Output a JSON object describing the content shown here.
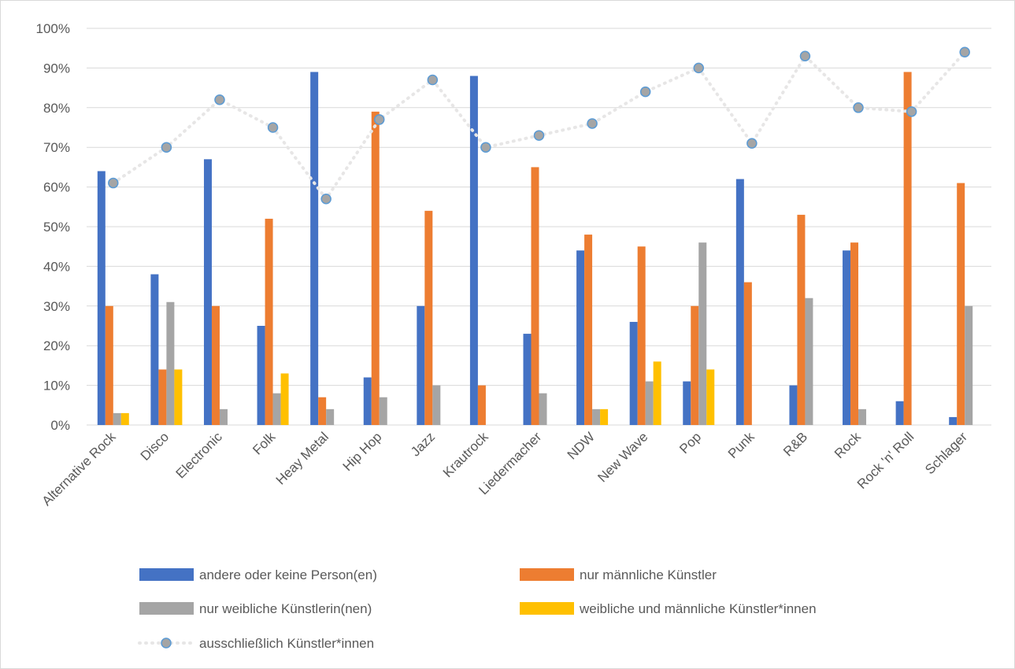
{
  "chart_data": {
    "type": "bar",
    "title": "",
    "xlabel": "",
    "ylabel": "",
    "ylim": [
      0,
      100
    ],
    "y_ticks": [
      "0%",
      "10%",
      "20%",
      "30%",
      "40%",
      "50%",
      "60%",
      "70%",
      "80%",
      "90%",
      "100%"
    ],
    "grid": true,
    "legend_position": "bottom",
    "categories": [
      "Alternative Rock",
      "Disco",
      "Electronic",
      "Folk",
      "Heay Metal",
      "Hip Hop",
      "Jazz",
      "Krautrock",
      "Liedermacher",
      "NDW",
      "New Wave",
      "Pop",
      "Punk",
      "R&B",
      "Rock",
      "Rock 'n' Roll",
      "Schlager"
    ],
    "series": [
      {
        "name": "andere oder keine Person(en)",
        "type": "bar",
        "color": "#4472C4",
        "values": [
          64,
          38,
          67,
          25,
          89,
          12,
          30,
          88,
          23,
          44,
          26,
          11,
          62,
          10,
          44,
          6,
          2
        ]
      },
      {
        "name": "nur männliche Künstler",
        "type": "bar",
        "color": "#ED7D31",
        "values": [
          30,
          14,
          30,
          52,
          7,
          79,
          54,
          10,
          65,
          48,
          45,
          30,
          36,
          53,
          46,
          89,
          61
        ]
      },
      {
        "name": "nur weibliche Künstlerin(nen)",
        "type": "bar",
        "color": "#A5A5A5",
        "values": [
          3,
          31,
          4,
          8,
          4,
          7,
          10,
          0,
          8,
          4,
          11,
          46,
          0,
          32,
          4,
          0,
          30
        ]
      },
      {
        "name": "weibliche und männliche Künstler*innen",
        "type": "bar",
        "color": "#FFC000",
        "values": [
          3,
          14,
          0,
          13,
          0,
          0,
          0,
          0,
          0,
          4,
          16,
          14,
          0,
          0,
          0,
          0,
          0
        ]
      },
      {
        "name": "ausschließlich Künstler*innen",
        "type": "line",
        "style": "dotted",
        "color": "#E7E6E6",
        "marker_fill": "#A5A5A5",
        "marker_edge": "#5B9BD5",
        "values": [
          61,
          70,
          82,
          75,
          57,
          77,
          87,
          70,
          73,
          76,
          84,
          90,
          71,
          93,
          80,
          79,
          94
        ]
      }
    ]
  }
}
